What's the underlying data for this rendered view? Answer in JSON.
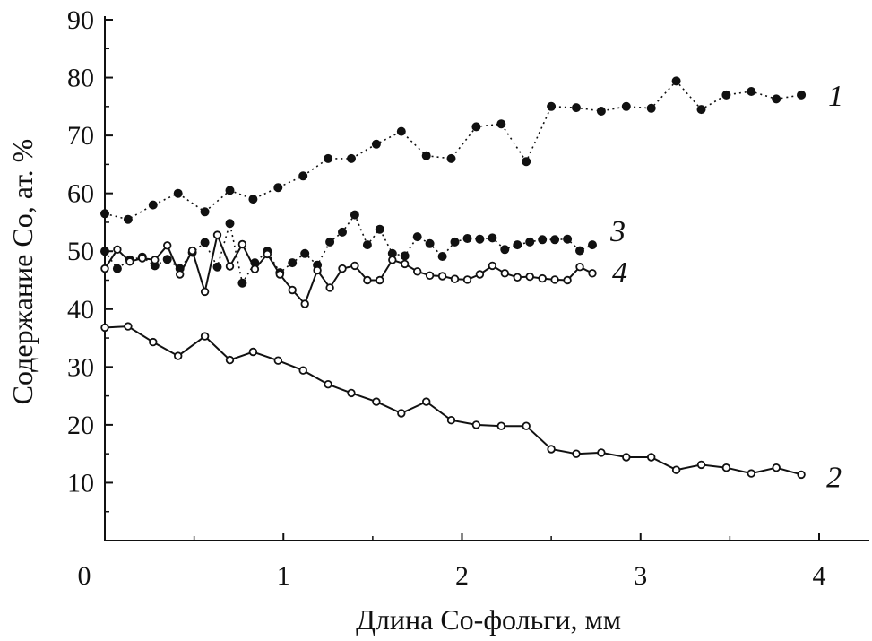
{
  "chart_data": {
    "type": "line",
    "title": "",
    "xlabel": "Длина Co-фольги, мм",
    "ylabel": "Содержание Co, ат. %",
    "xlim": [
      0,
      4.3
    ],
    "ylim": [
      0,
      90
    ],
    "xticks": [
      0,
      1,
      2,
      3,
      4
    ],
    "yticks": [
      10,
      20,
      30,
      40,
      50,
      60,
      70,
      80,
      90
    ],
    "grid": false,
    "series": [
      {
        "name": "1",
        "line_style": "dotted",
        "marker": "filled",
        "x": [
          0,
          0.13,
          0.27,
          0.41,
          0.56,
          0.7,
          0.83,
          0.97,
          1.11,
          1.25,
          1.38,
          1.52,
          1.66,
          1.8,
          1.94,
          2.08,
          2.22,
          2.36,
          2.5,
          2.64,
          2.78,
          2.92,
          3.06,
          3.2,
          3.34,
          3.48,
          3.62,
          3.76,
          3.9
        ],
        "y": [
          56.5,
          55.5,
          58,
          60,
          56.8,
          60.5,
          59,
          61,
          63,
          66,
          66,
          68.5,
          70.7,
          66.5,
          66,
          71.5,
          72,
          65.5,
          75,
          74.8,
          74.2,
          75,
          74.7,
          79.4,
          74.5,
          77,
          77.6,
          76.3,
          77
        ]
      },
      {
        "name": "2",
        "line_style": "solid",
        "marker": "open",
        "x": [
          0,
          0.13,
          0.27,
          0.41,
          0.56,
          0.7,
          0.83,
          0.97,
          1.11,
          1.25,
          1.38,
          1.52,
          1.66,
          1.8,
          1.94,
          2.08,
          2.22,
          2.36,
          2.5,
          2.64,
          2.78,
          2.92,
          3.06,
          3.2,
          3.34,
          3.48,
          3.62,
          3.76,
          3.9
        ],
        "y": [
          36.8,
          37,
          34.3,
          31.9,
          35.3,
          31.2,
          32.6,
          31.1,
          29.4,
          27,
          25.5,
          24,
          22,
          24,
          20.8,
          20,
          19.8,
          19.8,
          15.8,
          15,
          15.2,
          14.4,
          14.4,
          12.2,
          13.1,
          12.6,
          11.6,
          12.6,
          11.4
        ]
      },
      {
        "name": "3",
        "line_style": "dotted",
        "marker": "filled",
        "x": [
          0,
          0.07,
          0.14,
          0.21,
          0.28,
          0.35,
          0.42,
          0.49,
          0.56,
          0.63,
          0.7,
          0.77,
          0.84,
          0.91,
          0.98,
          1.05,
          1.12,
          1.19,
          1.26,
          1.33,
          1.4,
          1.47,
          1.54,
          1.61,
          1.68,
          1.75,
          1.82,
          1.89,
          1.96,
          2.03,
          2.1,
          2.17,
          2.24,
          2.31,
          2.38,
          2.45,
          2.52,
          2.59,
          2.66,
          2.73
        ],
        "y": [
          50,
          47,
          48.5,
          49,
          47.5,
          48.6,
          47,
          49.8,
          51.5,
          47.3,
          54.8,
          44.5,
          48,
          50,
          46.3,
          48,
          49.6,
          47.6,
          51.6,
          53.3,
          56.3,
          51.1,
          53.8,
          49.6,
          49.2,
          52.5,
          51.3,
          49.1,
          51.6,
          52.2,
          52.1,
          52.3,
          50.3,
          51.1,
          51.6,
          52,
          52,
          52.1,
          50.1,
          51.1
        ]
      },
      {
        "name": "4",
        "line_style": "solid",
        "marker": "open",
        "x": [
          0,
          0.07,
          0.14,
          0.21,
          0.28,
          0.35,
          0.42,
          0.49,
          0.56,
          0.63,
          0.7,
          0.77,
          0.84,
          0.91,
          0.98,
          1.05,
          1.12,
          1.19,
          1.26,
          1.33,
          1.4,
          1.47,
          1.54,
          1.61,
          1.68,
          1.75,
          1.82,
          1.89,
          1.96,
          2.03,
          2.1,
          2.17,
          2.24,
          2.31,
          2.38,
          2.45,
          2.52,
          2.59,
          2.66,
          2.73
        ],
        "y": [
          47,
          50.3,
          48.2,
          48.8,
          48.5,
          51,
          46,
          50.1,
          43,
          52.8,
          47.4,
          51.2,
          46.9,
          49.5,
          46,
          43.3,
          40.9,
          46.7,
          43.7,
          47,
          47.5,
          45,
          45,
          48.5,
          47.8,
          46.5,
          45.8,
          45.7,
          45.2,
          45.1,
          46,
          47.5,
          46.2,
          45.5,
          45.6,
          45.3,
          45.1,
          45,
          47.3,
          46.2
        ]
      }
    ]
  }
}
